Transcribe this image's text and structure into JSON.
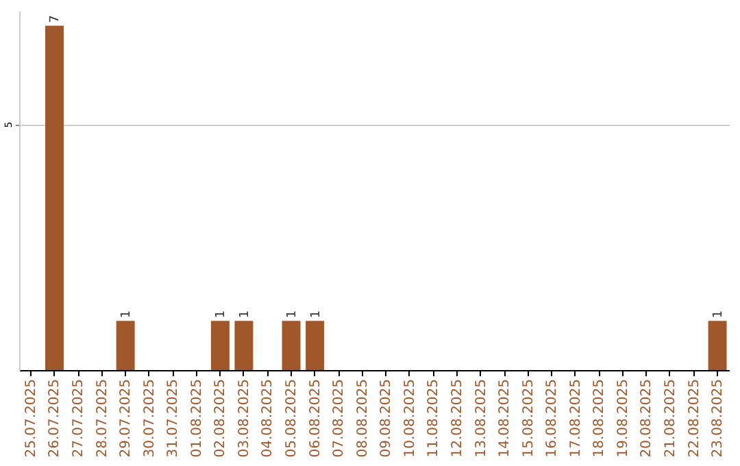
{
  "chart_data": {
    "type": "bar",
    "categories": [
      "25.07.2025",
      "26.07.2025",
      "27.07.2025",
      "28.07.2025",
      "29.07.2025",
      "30.07.2025",
      "31.07.2025",
      "01.08.2025",
      "02.08.2025",
      "03.08.2025",
      "04.08.2025",
      "05.08.2025",
      "06.08.2025",
      "07.08.2025",
      "08.08.2025",
      "09.08.2025",
      "10.08.2025",
      "11.08.2025",
      "12.08.2025",
      "13.08.2025",
      "14.08.2025",
      "15.08.2025",
      "16.08.2025",
      "17.08.2025",
      "18.08.2025",
      "19.08.2025",
      "20.08.2025",
      "21.08.2025",
      "22.08.2025",
      "23.08.2025"
    ],
    "values": [
      0,
      7,
      0,
      0,
      1,
      0,
      0,
      0,
      1,
      1,
      0,
      1,
      1,
      0,
      0,
      0,
      0,
      0,
      0,
      0,
      0,
      0,
      0,
      0,
      0,
      0,
      0,
      0,
      0,
      1
    ],
    "value_labels": [
      null,
      "7",
      null,
      null,
      "1",
      null,
      null,
      null,
      "1",
      "1",
      null,
      "1",
      "1",
      null,
      null,
      null,
      null,
      null,
      null,
      null,
      null,
      null,
      null,
      null,
      null,
      null,
      null,
      null,
      null,
      "1"
    ],
    "color": "#a0582b",
    "ylim": [
      0,
      7.3
    ],
    "yticks": [
      5
    ],
    "grid": "y"
  }
}
